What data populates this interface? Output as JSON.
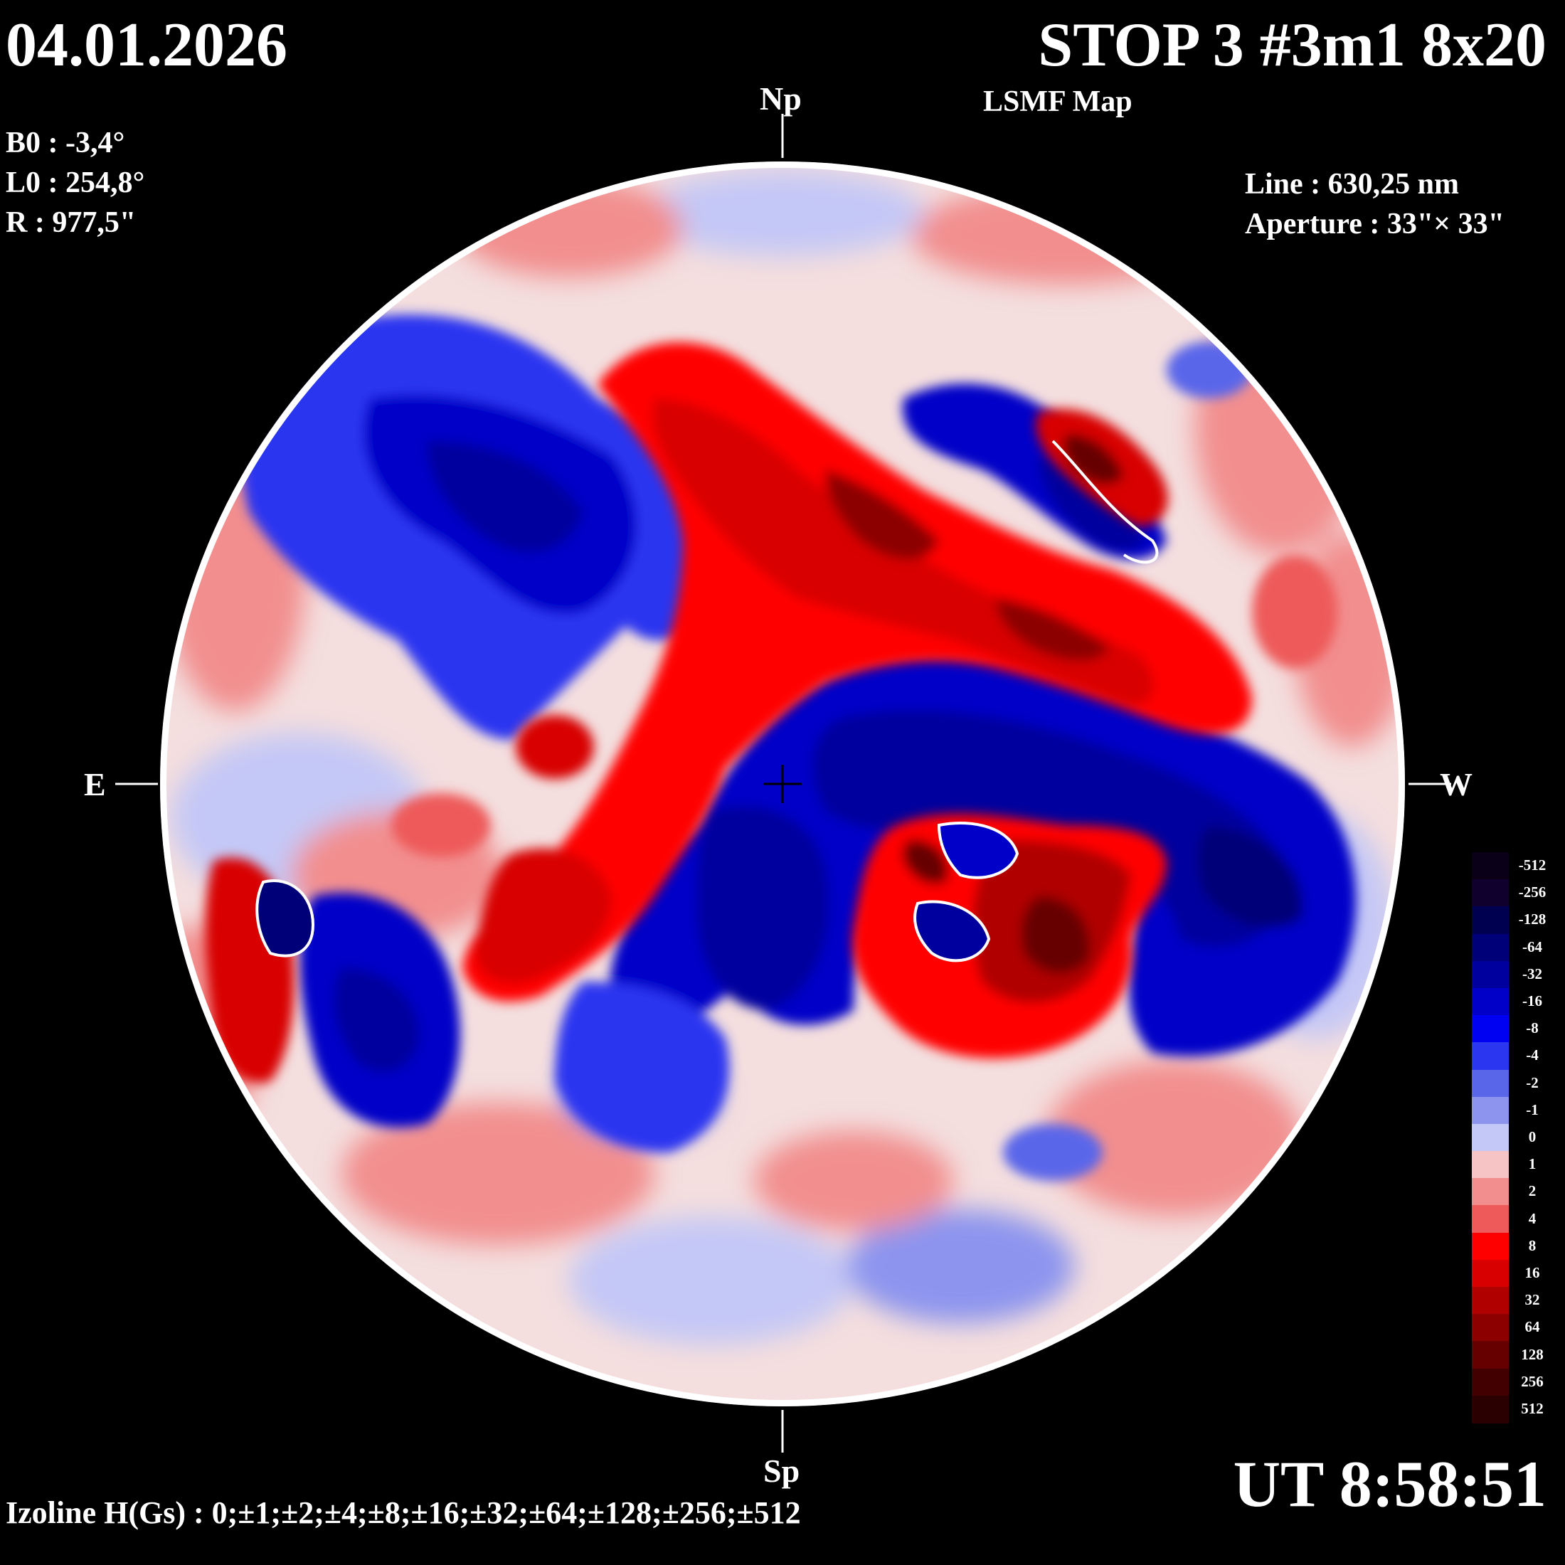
{
  "header": {
    "date": "04.01.2026",
    "title": "STOP 3 #3m1 8x20",
    "subtitle": "LSMF  Map"
  },
  "params": {
    "b0": "B0 : -3,4°",
    "l0": "L0 : 254,8°",
    "r": "R  : 977,5\""
  },
  "instrument": {
    "line": "Line :  630,25 nm",
    "aperture": "Aperture : 33\"× 33\""
  },
  "directions": {
    "north": "Np",
    "south": "Sp",
    "east": "E",
    "west": "W"
  },
  "time": "UT 8:58:51",
  "izoline": "Izoline H(Gs) : 0;±1;±2;±4;±8;±16;±32;±64;±128;±256;±512",
  "colorbar": {
    "labels": [
      "-512",
      "-256",
      "-128",
      "-64",
      "-32",
      "-16",
      "-8",
      "-4",
      "-2",
      "-1",
      "0",
      "1",
      "2",
      "4",
      "8",
      "16",
      "32",
      "64",
      "128",
      "256",
      "512"
    ],
    "colors": [
      "#0a0018",
      "#10002e",
      "#000050",
      "#000078",
      "#00009e",
      "#0000c8",
      "#0000f2",
      "#2a36f0",
      "#5a66ea",
      "#8c94ee",
      "#c4c8f6",
      "#f6c4c4",
      "#f28e8e",
      "#ee5a5a",
      "#ff0000",
      "#d80000",
      "#b00000",
      "#8c0000",
      "#660000",
      "#420000",
      "#2a0000"
    ]
  }
}
